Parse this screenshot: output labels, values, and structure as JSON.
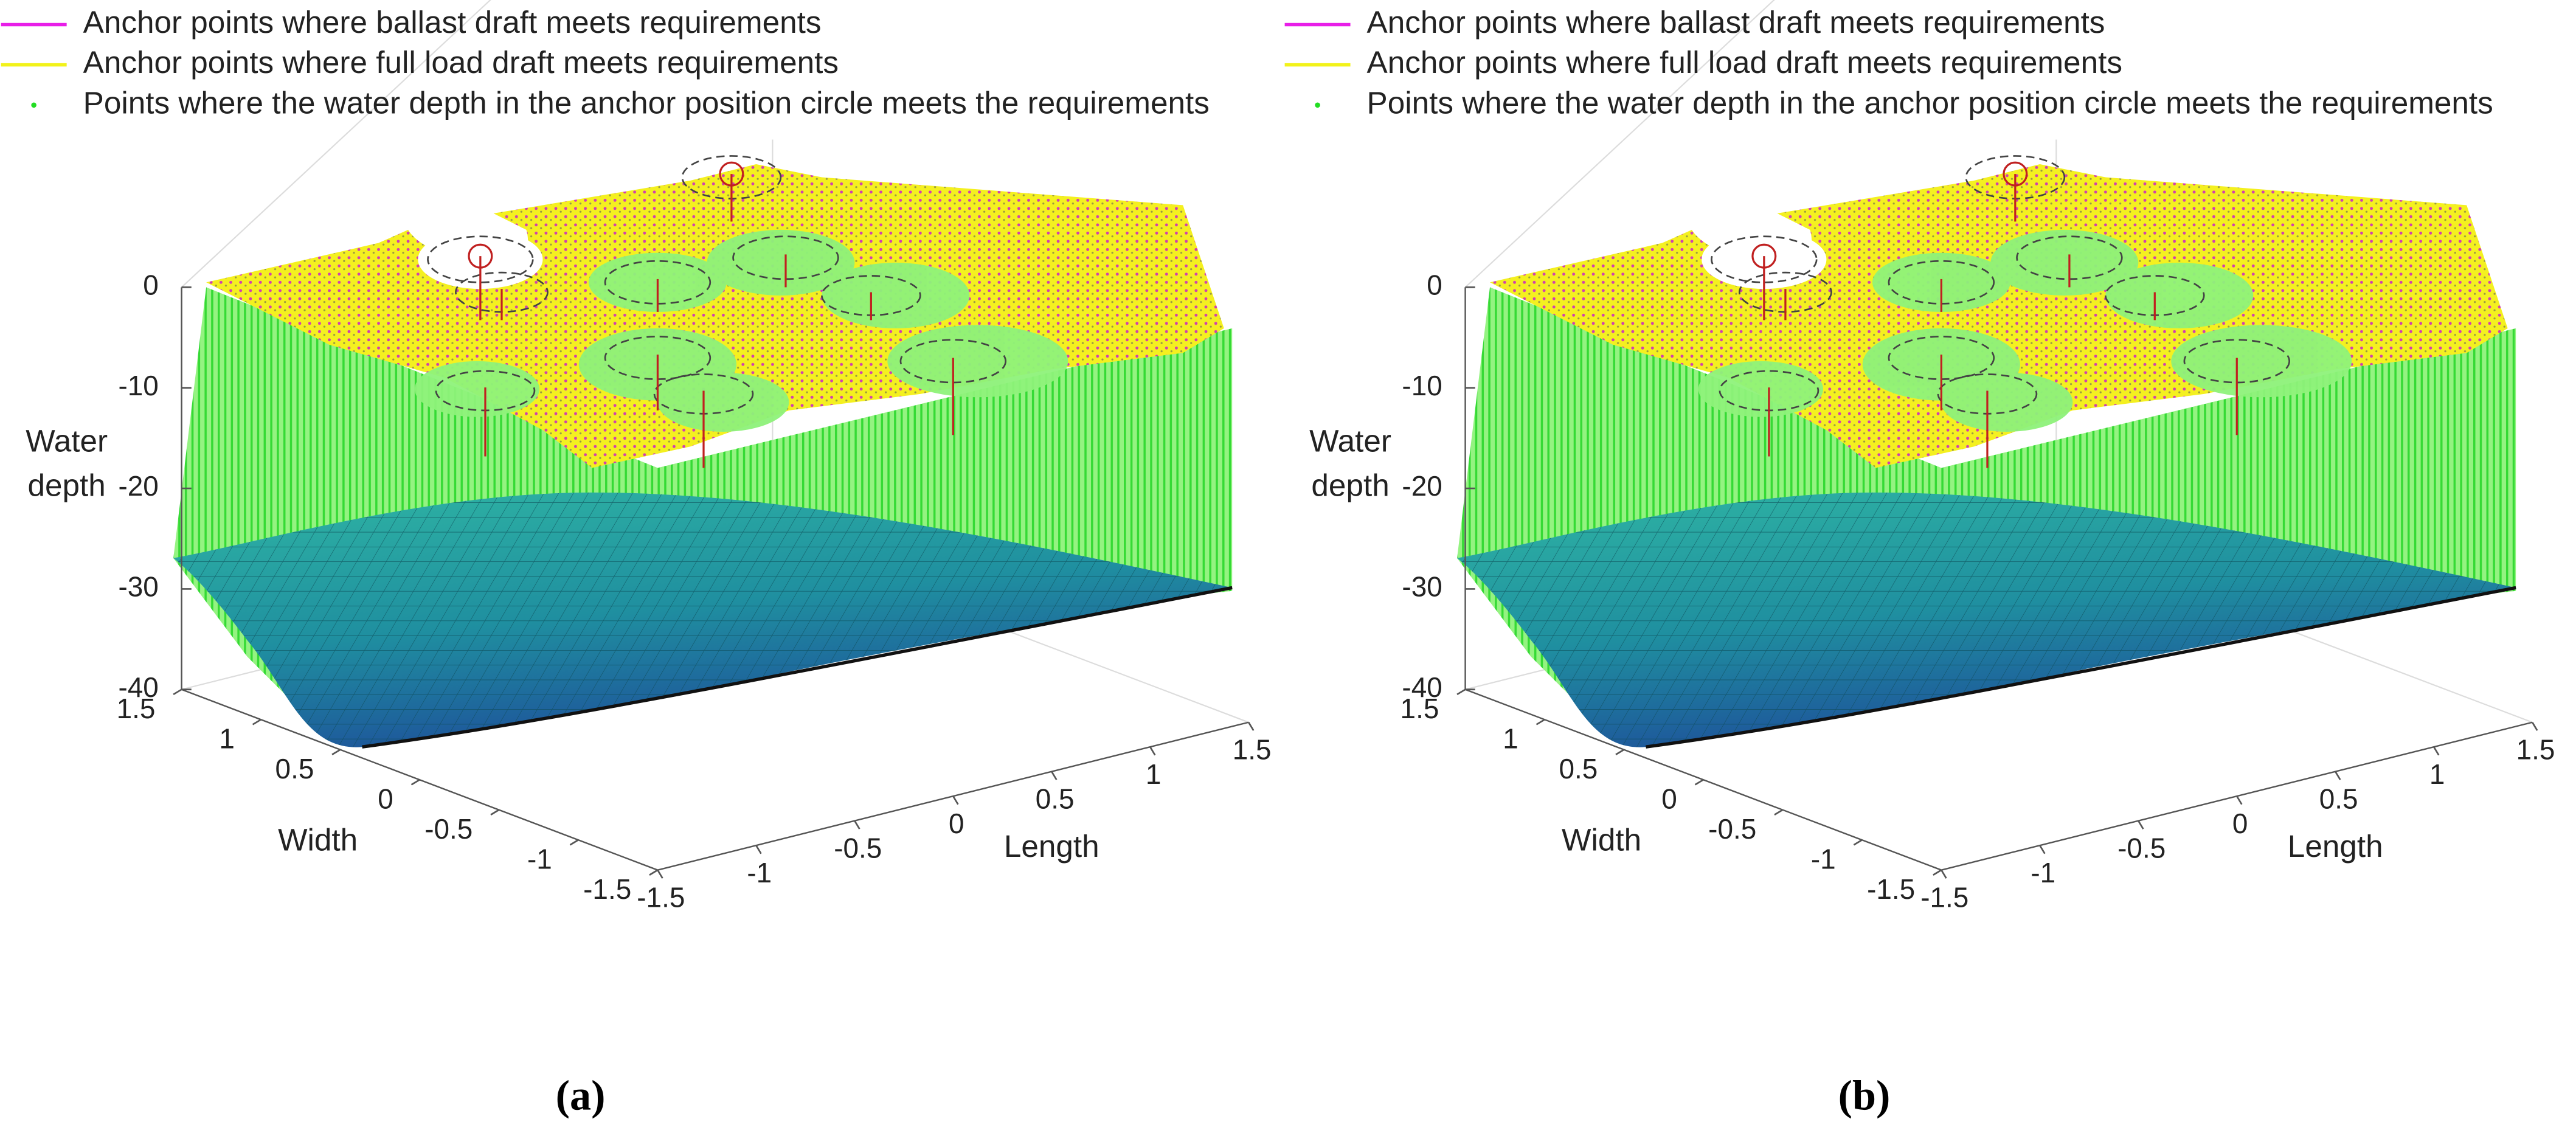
{
  "chart_data": [
    {
      "type": "surface3d",
      "panel_label": "(a)",
      "series": [
        {
          "name": "Anchor points where ballast draft meets requirements",
          "color": "#e81ee8",
          "marker": "line"
        },
        {
          "name": "Anchor points where full load draft meets requirements",
          "color": "#f2f21a",
          "marker": "line"
        },
        {
          "name": "Points where the water depth in the anchor position circle meets the requirements",
          "color": "#22dd22",
          "marker": "point"
        }
      ],
      "xlabel": "Length",
      "ylabel": "Width",
      "zlabel": [
        "Water",
        "depth"
      ],
      "xlim": [
        -1.5,
        1.5
      ],
      "xticks": [
        -1.5,
        -1,
        -0.5,
        0,
        0.5,
        1,
        1.5
      ],
      "ylim": [
        -1.5,
        1.5
      ],
      "yticks": [
        -1.5,
        -1,
        -0.5,
        0,
        0.5,
        1,
        1.5
      ],
      "zlim": [
        -40,
        0
      ],
      "zticks": [
        -40,
        -30,
        -20,
        -10,
        0
      ]
    },
    {
      "type": "surface3d",
      "panel_label": "(b)",
      "series": [
        {
          "name": "Anchor points where ballast draft meets requirements",
          "color": "#e81ee8",
          "marker": "line"
        },
        {
          "name": "Anchor points where full load draft meets requirements",
          "color": "#f2f21a",
          "marker": "line"
        },
        {
          "name": "Points where the water depth in the anchor position circle meets the requirements",
          "color": "#22dd22",
          "marker": "point"
        }
      ],
      "xlabel": "Length",
      "ylabel": "Width",
      "zlabel": [
        "Water",
        "depth"
      ],
      "xlim": [
        -1.5,
        1.5
      ],
      "xticks": [
        -1.5,
        -1,
        -0.5,
        0,
        0.5,
        1,
        1.5
      ],
      "ylim": [
        -1.5,
        1.5
      ],
      "yticks": [
        -1.5,
        -1,
        -0.5,
        0,
        0.5,
        1,
        1.5
      ],
      "zlim": [
        -40,
        0
      ],
      "zticks": [
        -40,
        -30,
        -20,
        -10,
        0
      ]
    }
  ]
}
